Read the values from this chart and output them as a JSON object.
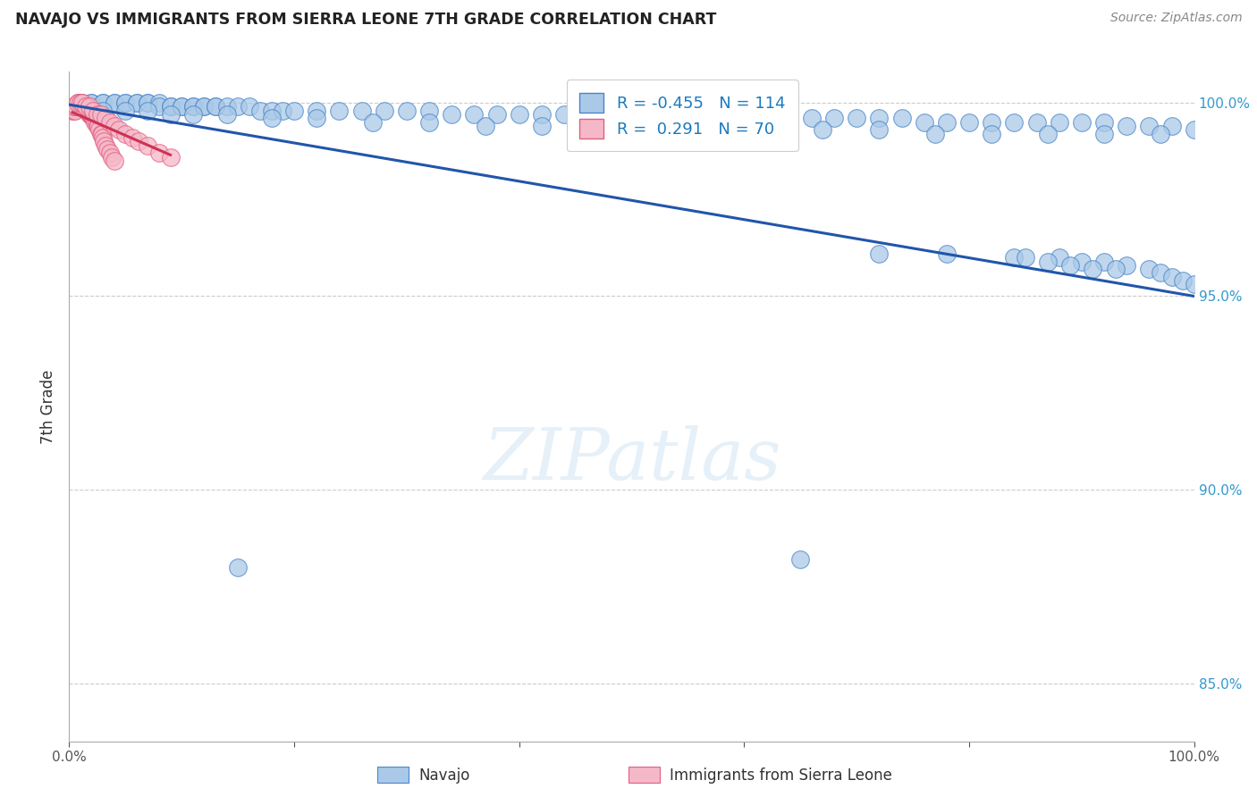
{
  "title": "NAVAJO VS IMMIGRANTS FROM SIERRA LEONE 7TH GRADE CORRELATION CHART",
  "source": "Source: ZipAtlas.com",
  "ylabel": "7th Grade",
  "legend_blue_r": "-0.455",
  "legend_blue_n": "114",
  "legend_pink_r": "0.291",
  "legend_pink_n": "70",
  "legend_label_blue": "Navajo",
  "legend_label_pink": "Immigrants from Sierra Leone",
  "blue_color": "#aac9e8",
  "blue_edge_color": "#4a86c8",
  "blue_line_color": "#2255aa",
  "pink_color": "#f5b8c8",
  "pink_edge_color": "#e06080",
  "pink_line_color": "#cc3355",
  "watermark": "ZIPatlas",
  "navajo_x": [
    0.01,
    0.02,
    0.02,
    0.03,
    0.03,
    0.04,
    0.04,
    0.05,
    0.05,
    0.06,
    0.06,
    0.07,
    0.07,
    0.08,
    0.08,
    0.09,
    0.09,
    0.1,
    0.1,
    0.11,
    0.11,
    0.12,
    0.12,
    0.13,
    0.13,
    0.14,
    0.15,
    0.16,
    0.17,
    0.18,
    0.19,
    0.2,
    0.22,
    0.24,
    0.26,
    0.28,
    0.3,
    0.32,
    0.34,
    0.36,
    0.38,
    0.4,
    0.42,
    0.44,
    0.46,
    0.48,
    0.5,
    0.52,
    0.54,
    0.56,
    0.58,
    0.6,
    0.62,
    0.64,
    0.66,
    0.68,
    0.7,
    0.72,
    0.74,
    0.76,
    0.78,
    0.8,
    0.82,
    0.84,
    0.86,
    0.88,
    0.9,
    0.92,
    0.94,
    0.96,
    0.98,
    1.0,
    0.03,
    0.05,
    0.07,
    0.09,
    0.11,
    0.14,
    0.18,
    0.22,
    0.27,
    0.32,
    0.37,
    0.42,
    0.47,
    0.52,
    0.57,
    0.62,
    0.67,
    0.72,
    0.77,
    0.82,
    0.87,
    0.92,
    0.97,
    0.15,
    0.65,
    0.72,
    0.78,
    0.84,
    0.88,
    0.9,
    0.92,
    0.94,
    0.96,
    0.97,
    0.98,
    0.99,
    1.0,
    0.85,
    0.87,
    0.89,
    0.91,
    0.93
  ],
  "navajo_y": [
    1.0,
    1.0,
    1.0,
    1.0,
    1.0,
    1.0,
    1.0,
    1.0,
    1.0,
    1.0,
    1.0,
    1.0,
    1.0,
    1.0,
    0.999,
    0.999,
    0.999,
    0.999,
    0.999,
    0.999,
    0.999,
    0.999,
    0.999,
    0.999,
    0.999,
    0.999,
    0.999,
    0.999,
    0.998,
    0.998,
    0.998,
    0.998,
    0.998,
    0.998,
    0.998,
    0.998,
    0.998,
    0.998,
    0.997,
    0.997,
    0.997,
    0.997,
    0.997,
    0.997,
    0.997,
    0.997,
    0.997,
    0.997,
    0.996,
    0.996,
    0.996,
    0.996,
    0.996,
    0.996,
    0.996,
    0.996,
    0.996,
    0.996,
    0.996,
    0.995,
    0.995,
    0.995,
    0.995,
    0.995,
    0.995,
    0.995,
    0.995,
    0.995,
    0.994,
    0.994,
    0.994,
    0.993,
    0.998,
    0.998,
    0.998,
    0.997,
    0.997,
    0.997,
    0.996,
    0.996,
    0.995,
    0.995,
    0.994,
    0.994,
    0.993,
    0.993,
    0.993,
    0.993,
    0.993,
    0.993,
    0.992,
    0.992,
    0.992,
    0.992,
    0.992,
    0.88,
    0.882,
    0.961,
    0.961,
    0.96,
    0.96,
    0.959,
    0.959,
    0.958,
    0.957,
    0.956,
    0.955,
    0.954,
    0.953,
    0.96,
    0.959,
    0.958,
    0.957,
    0.957
  ],
  "sierra_x": [
    0.003,
    0.004,
    0.005,
    0.006,
    0.006,
    0.007,
    0.007,
    0.008,
    0.008,
    0.009,
    0.009,
    0.01,
    0.01,
    0.011,
    0.011,
    0.012,
    0.012,
    0.013,
    0.013,
    0.014,
    0.014,
    0.015,
    0.015,
    0.016,
    0.016,
    0.017,
    0.017,
    0.018,
    0.018,
    0.019,
    0.019,
    0.02,
    0.02,
    0.021,
    0.021,
    0.022,
    0.023,
    0.024,
    0.025,
    0.026,
    0.027,
    0.028,
    0.029,
    0.03,
    0.031,
    0.032,
    0.034,
    0.036,
    0.038,
    0.04,
    0.004,
    0.006,
    0.008,
    0.01,
    0.012,
    0.015,
    0.018,
    0.021,
    0.025,
    0.028,
    0.032,
    0.036,
    0.04,
    0.044,
    0.05,
    0.056,
    0.062,
    0.07,
    0.08,
    0.09
  ],
  "sierra_y": [
    0.998,
    0.998,
    0.998,
    0.999,
    0.999,
    0.999,
    0.999,
    0.999,
    1.0,
    1.0,
    1.0,
    1.0,
    1.0,
    1.0,
    1.0,
    0.999,
    0.999,
    0.999,
    0.999,
    0.999,
    0.999,
    0.999,
    0.999,
    0.998,
    0.998,
    0.998,
    0.998,
    0.998,
    0.997,
    0.997,
    0.997,
    0.997,
    0.997,
    0.996,
    0.996,
    0.996,
    0.995,
    0.995,
    0.994,
    0.994,
    0.993,
    0.992,
    0.992,
    0.991,
    0.99,
    0.989,
    0.988,
    0.987,
    0.986,
    0.985,
    0.999,
    0.999,
    1.0,
    1.0,
    1.0,
    0.999,
    0.999,
    0.998,
    0.997,
    0.997,
    0.996,
    0.995,
    0.994,
    0.993,
    0.992,
    0.991,
    0.99,
    0.989,
    0.987,
    0.986
  ],
  "xlim": [
    0.0,
    1.0
  ],
  "ylim": [
    0.835,
    1.008
  ],
  "yticks": [
    0.85,
    0.9,
    0.95,
    1.0
  ],
  "ytick_labels": [
    "85.0%",
    "90.0%",
    "95.0%",
    "100.0%"
  ],
  "xtick_positions": [
    0.0,
    0.2,
    0.4,
    0.6,
    0.8,
    1.0
  ],
  "blue_trend_x": [
    0.0,
    1.0
  ],
  "blue_trend_y_start": 0.9995,
  "blue_trend_y_end": 0.95,
  "pink_trend_x_start": 0.003,
  "pink_trend_x_end": 0.09,
  "pink_trend_y_start": 0.9975,
  "pink_trend_y_end": 0.9865
}
